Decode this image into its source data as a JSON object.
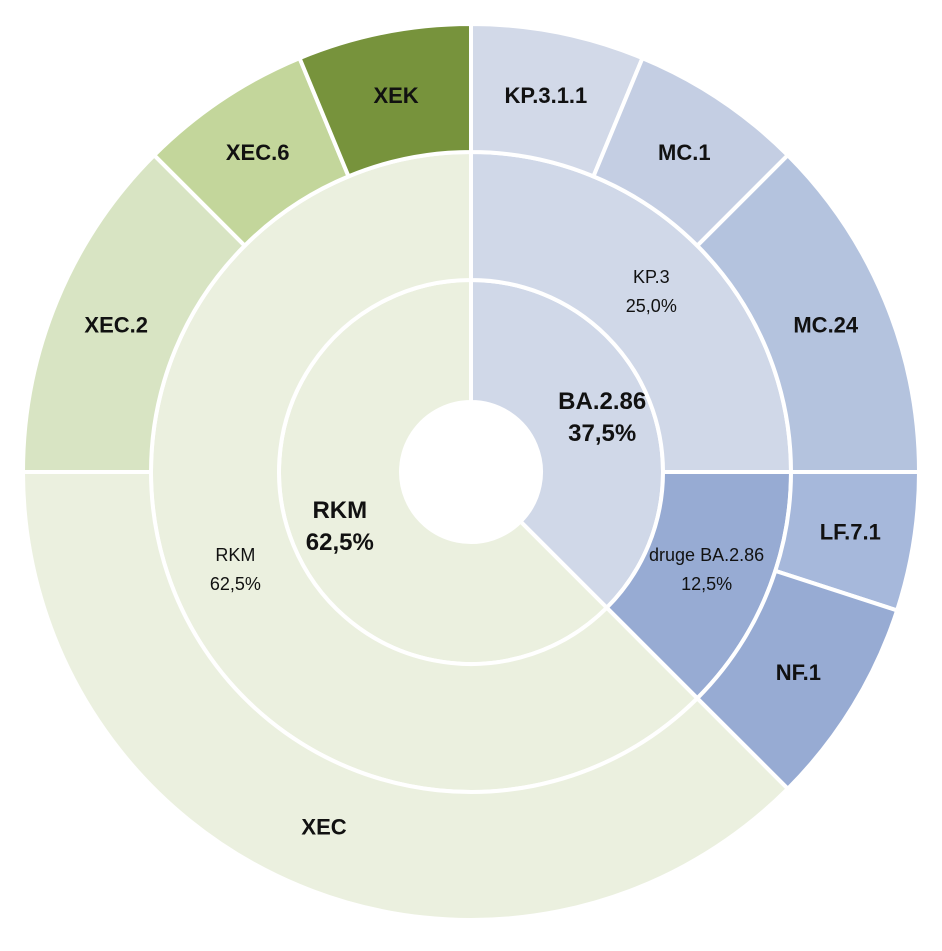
{
  "chart_data": {
    "type": "sunburst",
    "title": "",
    "start_angle_deg": 0,
    "direction": "clockwise",
    "colors": {
      "separator": "#ffffff"
    },
    "rings": [
      {
        "level": "inner",
        "segments": [
          {
            "label": "BA.2.86",
            "value_text": "37,5%",
            "value": 37.5,
            "color": "#d0d8e8"
          },
          {
            "label": "RKM",
            "value_text": "62,5%",
            "value": 62.5,
            "color": "#ebf0df"
          }
        ]
      },
      {
        "level": "middle",
        "segments": [
          {
            "label": "KP.3",
            "value_text": "25,0%",
            "value": 25.0,
            "color": "#d0d8e8"
          },
          {
            "label": "druge BA.2.86",
            "value_text": "12,5%",
            "value": 12.5,
            "color": "#97abd3"
          },
          {
            "label": "RKM",
            "value_text": "62,5%",
            "value": 62.5,
            "color": "#ebf0df"
          }
        ]
      },
      {
        "level": "outer",
        "segments": [
          {
            "label": "KP.3.1.1",
            "value": 6.25,
            "color": "#d2d9e8"
          },
          {
            "label": "MC.1",
            "value": 6.25,
            "color": "#c4cee3"
          },
          {
            "label": "MC.24",
            "value": 12.5,
            "color": "#b4c3de"
          },
          {
            "label": "LF.7.1",
            "value": 5.0,
            "color": "#a6b8db"
          },
          {
            "label": "NF.1",
            "value": 7.5,
            "color": "#97abd3"
          },
          {
            "label": "XEC",
            "value": 37.5,
            "color": "#ebf0df"
          },
          {
            "label": "XEC.2",
            "value": 12.5,
            "color": "#d8e4c3"
          },
          {
            "label": "XEC.6",
            "value": 6.25,
            "color": "#c3d69b"
          },
          {
            "label": "XEK",
            "value": 6.25,
            "color": "#77933c"
          }
        ]
      }
    ]
  }
}
